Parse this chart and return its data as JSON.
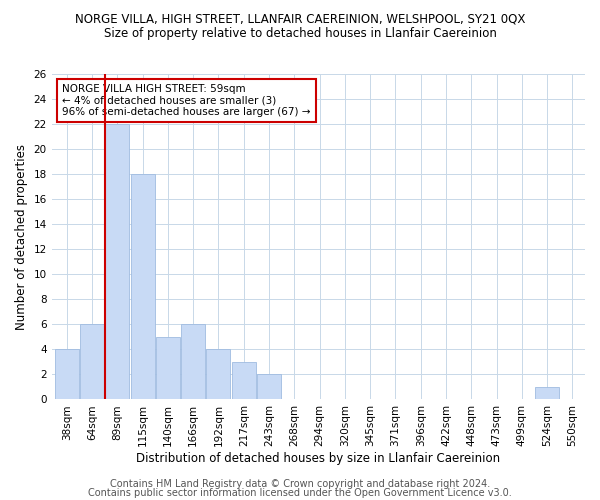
{
  "title": "NORGE VILLA, HIGH STREET, LLANFAIR CAEREINION, WELSHPOOL, SY21 0QX",
  "subtitle": "Size of property relative to detached houses in Llanfair Caereinion",
  "xlabel": "Distribution of detached houses by size in Llanfair Caereinion",
  "ylabel": "Number of detached properties",
  "bin_labels": [
    "38sqm",
    "64sqm",
    "89sqm",
    "115sqm",
    "140sqm",
    "166sqm",
    "192sqm",
    "217sqm",
    "243sqm",
    "268sqm",
    "294sqm",
    "320sqm",
    "345sqm",
    "371sqm",
    "396sqm",
    "422sqm",
    "448sqm",
    "473sqm",
    "499sqm",
    "524sqm",
    "550sqm"
  ],
  "bar_values": [
    4,
    6,
    22,
    18,
    5,
    6,
    4,
    3,
    2,
    0,
    0,
    0,
    0,
    0,
    0,
    0,
    0,
    0,
    0,
    1,
    0
  ],
  "bar_color": "#c8daf5",
  "bar_edge_color": "#a0bce0",
  "property_line_color": "#cc0000",
  "property_line_x": 1.5,
  "annotation_text": "NORGE VILLA HIGH STREET: 59sqm\n← 4% of detached houses are smaller (3)\n96% of semi-detached houses are larger (67) →",
  "annotation_box_color": "#ffffff",
  "annotation_box_edge_color": "#cc0000",
  "ylim": [
    0,
    26
  ],
  "yticks": [
    0,
    2,
    4,
    6,
    8,
    10,
    12,
    14,
    16,
    18,
    20,
    22,
    24,
    26
  ],
  "grid_color": "#c8d8e8",
  "footer_line1": "Contains HM Land Registry data © Crown copyright and database right 2024.",
  "footer_line2": "Contains public sector information licensed under the Open Government Licence v3.0.",
  "title_fontsize": 8.5,
  "subtitle_fontsize": 8.5,
  "xlabel_fontsize": 8.5,
  "ylabel_fontsize": 8.5,
  "tick_fontsize": 7.5,
  "annotation_fontsize": 7.5,
  "footer_fontsize": 7.0
}
